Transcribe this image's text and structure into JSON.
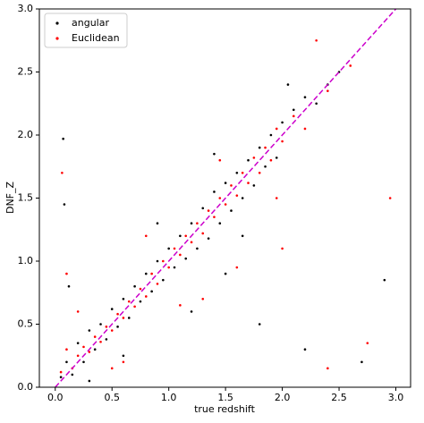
{
  "chart_data": {
    "type": "scatter",
    "x_label": "true redshift",
    "y_label": "DNF_Z",
    "xlim": [
      -0.14,
      3.13
    ],
    "ylim": [
      0,
      3
    ],
    "xticks": [
      {
        "value": 0,
        "label": "0.0"
      },
      0.5,
      {
        "value": 1,
        "label": "1.0"
      },
      1.5,
      {
        "value": 2,
        "label": "2.0"
      },
      2.5,
      {
        "value": 3,
        "label": "3.0"
      }
    ],
    "yticks": [
      {
        "value": 0,
        "label": "0.0"
      },
      0.5,
      {
        "value": 1,
        "label": "1.0"
      },
      1.5,
      {
        "value": 2,
        "label": "2.0"
      },
      2.5,
      {
        "value": 3,
        "label": "3.0"
      }
    ],
    "legend": "upper left",
    "reference_line": {
      "x": [
        0,
        3
      ],
      "y": [
        0,
        3
      ],
      "color": "#cc00cc"
    },
    "series": [
      {
        "name": "angular",
        "color": "#000000",
        "x": [
          0.05,
          0.1,
          0.15,
          0.2,
          0.25,
          0.3,
          0.35,
          0.4,
          0.45,
          0.5,
          0.55,
          0.6,
          0.65,
          0.7,
          0.75,
          0.8,
          0.85,
          0.9,
          0.95,
          1.0,
          1.05,
          1.1,
          1.15,
          1.2,
          1.25,
          1.3,
          1.35,
          1.4,
          1.45,
          1.5,
          1.55,
          1.6,
          1.65,
          1.7,
          1.75,
          1.8,
          1.85,
          1.9,
          1.95,
          2.0,
          2.1,
          2.2,
          2.3,
          2.5,
          0.07,
          0.08,
          0.12,
          0.6,
          1.2,
          1.5,
          1.8,
          2.2,
          2.7,
          2.9,
          0.3,
          0.9,
          1.4,
          1.65,
          2.05,
          2.4
        ],
        "values": [
          0.08,
          0.2,
          0.1,
          0.35,
          0.2,
          0.45,
          0.3,
          0.5,
          0.38,
          0.62,
          0.48,
          0.7,
          0.55,
          0.8,
          0.68,
          0.9,
          0.76,
          1.0,
          0.85,
          1.1,
          0.95,
          1.2,
          1.02,
          1.3,
          1.1,
          1.42,
          1.18,
          1.55,
          1.3,
          1.62,
          1.4,
          1.7,
          1.5,
          1.8,
          1.6,
          1.9,
          1.75,
          2.0,
          1.82,
          2.1,
          2.2,
          2.3,
          2.25,
          2.5,
          1.97,
          1.45,
          0.8,
          0.25,
          0.6,
          0.9,
          0.5,
          0.3,
          0.2,
          0.85,
          0.05,
          1.3,
          1.85,
          1.2,
          2.4,
          2.4
        ]
      },
      {
        "name": "Euclidean",
        "color": "#ff0000",
        "x": [
          0.05,
          0.1,
          0.15,
          0.2,
          0.25,
          0.3,
          0.35,
          0.4,
          0.45,
          0.5,
          0.55,
          0.6,
          0.65,
          0.7,
          0.75,
          0.8,
          0.85,
          0.9,
          0.95,
          1.0,
          1.05,
          1.1,
          1.15,
          1.2,
          1.25,
          1.3,
          1.35,
          1.4,
          1.45,
          1.5,
          1.55,
          1.6,
          1.65,
          1.7,
          1.75,
          1.8,
          1.85,
          1.9,
          1.95,
          2.0,
          2.1,
          2.2,
          2.4,
          2.6,
          0.06,
          0.1,
          0.6,
          1.3,
          1.6,
          2.0,
          2.4,
          2.75,
          2.95,
          0.2,
          0.5,
          0.8,
          1.1,
          1.45,
          1.95,
          2.3
        ],
        "values": [
          0.12,
          0.3,
          0.15,
          0.25,
          0.32,
          0.28,
          0.4,
          0.36,
          0.48,
          0.45,
          0.58,
          0.55,
          0.68,
          0.64,
          0.78,
          0.72,
          0.9,
          0.82,
          1.0,
          0.95,
          1.1,
          1.05,
          1.2,
          1.15,
          1.3,
          1.22,
          1.4,
          1.35,
          1.5,
          1.45,
          1.6,
          1.52,
          1.7,
          1.62,
          1.82,
          1.7,
          1.9,
          1.8,
          2.05,
          1.95,
          2.15,
          2.05,
          2.35,
          2.55,
          1.7,
          0.9,
          0.2,
          0.7,
          0.95,
          1.1,
          0.15,
          0.35,
          1.5,
          0.6,
          0.15,
          1.2,
          0.65,
          1.8,
          1.5,
          2.75
        ]
      }
    ]
  }
}
